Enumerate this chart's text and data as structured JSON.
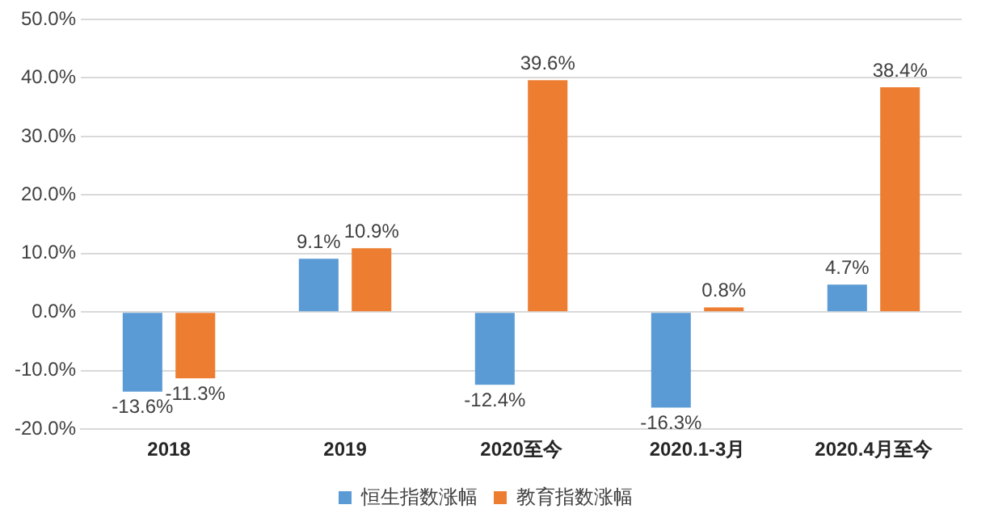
{
  "chart_data": {
    "type": "bar",
    "categories": [
      "2018",
      "2019",
      "2020至今",
      "2020.1-3月",
      "2020.4月至今"
    ],
    "series": [
      {
        "name": "恒生指数涨幅",
        "color": "#5b9bd5",
        "values": [
          -13.6,
          9.1,
          -12.4,
          -16.3,
          4.7
        ],
        "value_labels": [
          "-13.6%",
          "9.1%",
          "-12.4%",
          "-16.3%",
          "4.7%"
        ]
      },
      {
        "name": "教育指数涨幅",
        "color": "#ed7d31",
        "values": [
          -11.3,
          10.9,
          39.6,
          0.8,
          38.4
        ],
        "value_labels": [
          "-11.3%",
          "10.9%",
          "39.6%",
          "0.8%",
          "38.4%"
        ]
      }
    ],
    "ylim": [
      -20,
      50
    ],
    "yticks": [
      {
        "value": -20,
        "label": "-20.0%"
      },
      {
        "value": -10,
        "label": "-10.0%"
      },
      {
        "value": 0,
        "label": "0.0%"
      },
      {
        "value": 10,
        "label": "10.0%"
      },
      {
        "value": 20,
        "label": "20.0%"
      },
      {
        "value": 30,
        "label": "30.0%"
      },
      {
        "value": 40,
        "label": "40.0%"
      },
      {
        "value": 50,
        "label": "50.0%"
      }
    ],
    "grid": "y",
    "legend": "bottom"
  }
}
